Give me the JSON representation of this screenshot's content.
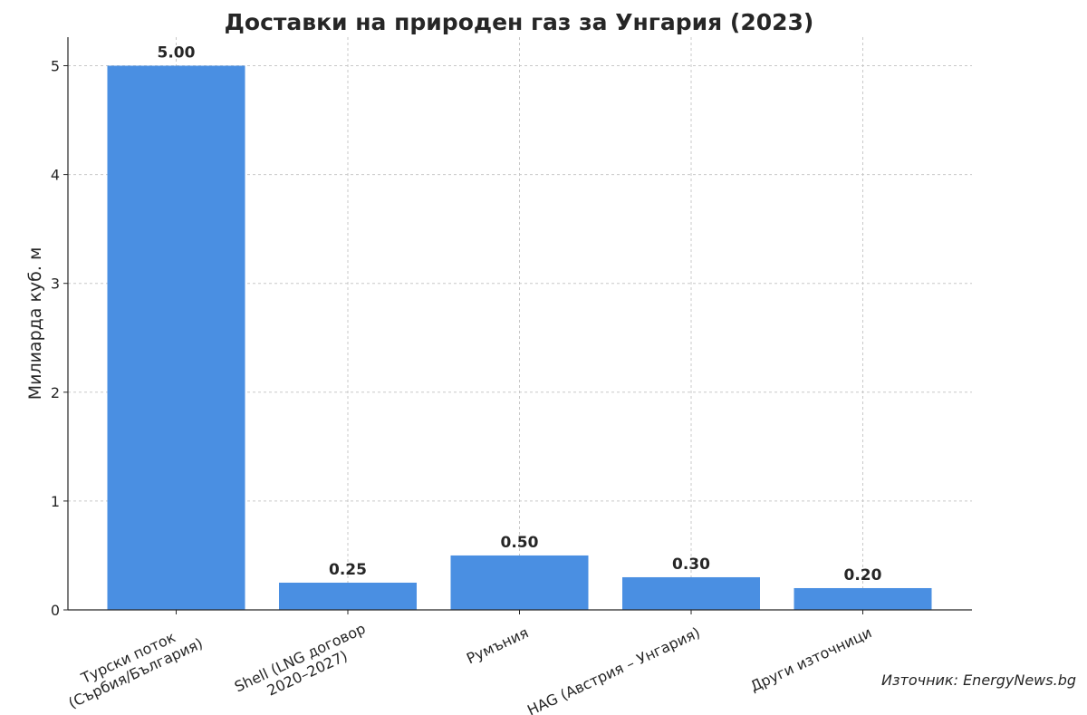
{
  "chart_data": {
    "type": "bar",
    "title": "Доставки на природен газ за Унгария (2023)",
    "ylabel": "Милиарда куб. м",
    "xlabel": "",
    "categories": [
      [
        "Турски поток",
        "(Сърбия/България)"
      ],
      [
        "Shell (LNG договор",
        "2020–2027)"
      ],
      [
        "Румъния"
      ],
      [
        "HAG (Австрия – Унгария)"
      ],
      [
        "Други източници"
      ]
    ],
    "values": [
      5.0,
      0.25,
      0.5,
      0.3,
      0.2
    ],
    "value_labels": [
      "5.00",
      "0.25",
      "0.50",
      "0.30",
      "0.20"
    ],
    "ylim": [
      0,
      5.25
    ],
    "yticks": [
      0,
      1,
      2,
      3,
      4,
      5
    ],
    "grid": true,
    "bar_color": "#4a8fe2",
    "source": "Източник: EnergyNews.bg"
  }
}
